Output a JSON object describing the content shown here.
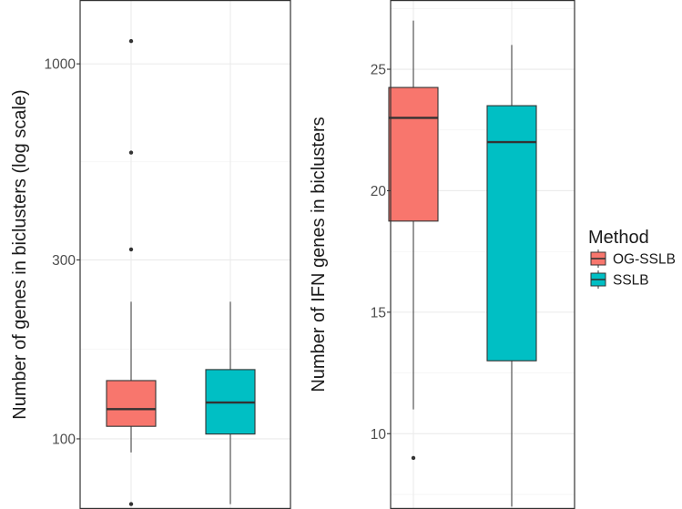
{
  "legend": {
    "title": "Method",
    "items": [
      {
        "label": "OG-SSLB",
        "color": "#F8766D"
      },
      {
        "label": "SSLB",
        "color": "#00BFC4"
      }
    ]
  },
  "chart_data": [
    {
      "type": "box",
      "ylabel": "Number of genes in biclusters (log scale)",
      "yscale": "log10",
      "ylim": [
        65,
        1480
      ],
      "yticks": [
        100,
        300,
        1000
      ],
      "ytick_labels": [
        "100",
        "300",
        "1000"
      ],
      "minor_grid": [
        173.2,
        547.7
      ],
      "grid": true,
      "series": [
        {
          "name": "OG-SSLB",
          "color": "#F8766D",
          "q1": 108,
          "median": 120,
          "q3": 143,
          "whisker_low": 92,
          "whisker_high": 232,
          "outliers": [
            67,
            320,
            580,
            1150
          ]
        },
        {
          "name": "SSLB",
          "color": "#00BFC4",
          "q1": 103,
          "median": 125,
          "q3": 153,
          "whisker_low": 67,
          "whisker_high": 232,
          "outliers": []
        }
      ]
    },
    {
      "type": "box",
      "ylabel": "Number of IFN genes in biclusters",
      "yscale": "linear",
      "ylim": [
        6.9,
        27.85
      ],
      "yticks": [
        10,
        15,
        20,
        25
      ],
      "ytick_labels": [
        "10",
        "15",
        "20",
        "25"
      ],
      "minor_grid": [
        7.5,
        12.5,
        17.5,
        22.5,
        27.5
      ],
      "grid": true,
      "series": [
        {
          "name": "OG-SSLB",
          "color": "#F8766D",
          "q1": 18.75,
          "median": 23,
          "q3": 24.25,
          "whisker_low": 11,
          "whisker_high": 27,
          "outliers": [
            9
          ]
        },
        {
          "name": "SSLB",
          "color": "#00BFC4",
          "q1": 13,
          "median": 22,
          "q3": 23.5,
          "whisker_low": 7,
          "whisker_high": 26,
          "outliers": []
        }
      ]
    }
  ]
}
